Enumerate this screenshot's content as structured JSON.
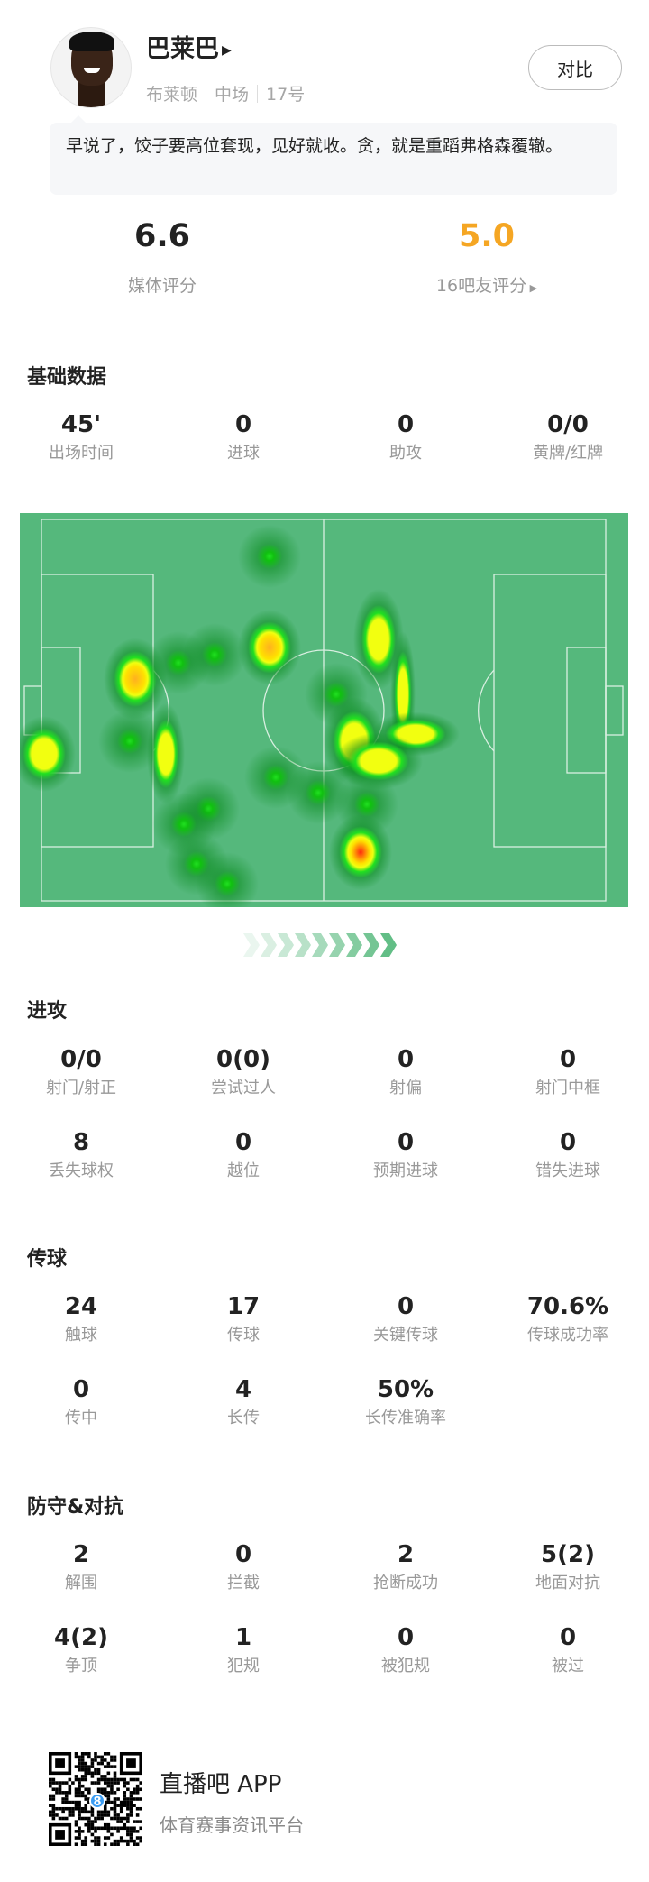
{
  "player": {
    "name": "巴莱巴",
    "team": "布莱顿",
    "position": "中场",
    "number": "17号",
    "compare_label": "对比",
    "quote": "早说了，饺子要高位套现，见好就收。贪，就是重蹈弗格森覆辙。"
  },
  "ratings": {
    "media": {
      "value": "6.6",
      "label": "媒体评分"
    },
    "fans": {
      "value": "5.0",
      "label": "16吧友评分",
      "color": "#f5a623"
    }
  },
  "basic": {
    "title": "基础数据",
    "stats": [
      {
        "v": "45'",
        "l": "出场时间"
      },
      {
        "v": "0",
        "l": "进球"
      },
      {
        "v": "0",
        "l": "助攻"
      },
      {
        "v": "0/0",
        "l": "黄牌/红牌"
      }
    ]
  },
  "heatmap": {
    "pitch_color": "#55b87c",
    "line_color": "#ffffff"
  },
  "attack": {
    "title": "进攻",
    "stats": [
      {
        "v": "0/0",
        "l": "射门/射正"
      },
      {
        "v": "0(0)",
        "l": "尝试过人"
      },
      {
        "v": "0",
        "l": "射偏"
      },
      {
        "v": "0",
        "l": "射门中框"
      },
      {
        "v": "8",
        "l": "丢失球权"
      },
      {
        "v": "0",
        "l": "越位"
      },
      {
        "v": "0",
        "l": "预期进球"
      },
      {
        "v": "0",
        "l": "错失进球"
      }
    ]
  },
  "passing": {
    "title": "传球",
    "stats": [
      {
        "v": "24",
        "l": "触球"
      },
      {
        "v": "17",
        "l": "传球"
      },
      {
        "v": "0",
        "l": "关键传球"
      },
      {
        "v": "70.6%",
        "l": "传球成功率"
      },
      {
        "v": "0",
        "l": "传中"
      },
      {
        "v": "4",
        "l": "长传"
      },
      {
        "v": "50%",
        "l": "长传准确率"
      }
    ]
  },
  "defense": {
    "title": "防守&对抗",
    "stats": [
      {
        "v": "2",
        "l": "解围"
      },
      {
        "v": "0",
        "l": "拦截"
      },
      {
        "v": "2",
        "l": "抢断成功"
      },
      {
        "v": "5(2)",
        "l": "地面对抗"
      },
      {
        "v": "4(2)",
        "l": "争顶"
      },
      {
        "v": "1",
        "l": "犯规"
      },
      {
        "v": "0",
        "l": "被犯规"
      },
      {
        "v": "0",
        "l": "被过"
      }
    ]
  },
  "footer": {
    "app_name": "直播吧 APP",
    "tagline": "体育赛事资讯平台",
    "qr_badge": "8",
    "badge_color": "#3b9cf2"
  }
}
